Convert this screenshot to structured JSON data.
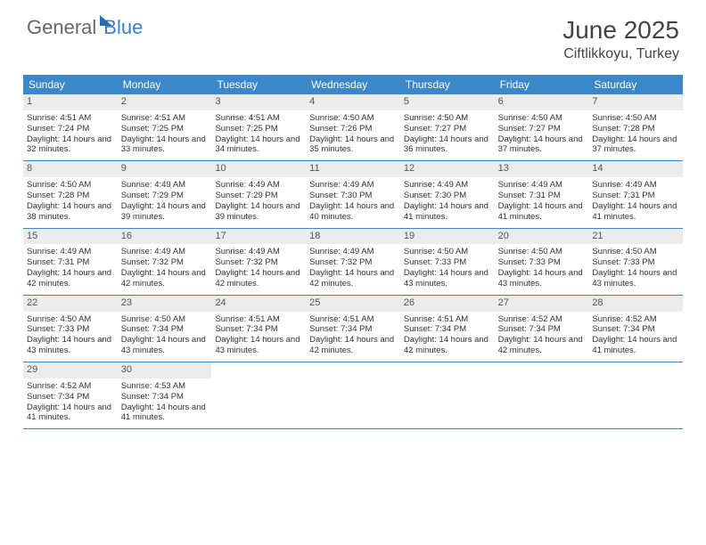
{
  "logo": {
    "part1": "General",
    "part2": "Blue"
  },
  "title": "June 2025",
  "location": "Ciftlikkoyu, Turkey",
  "colors": {
    "header_bg": "#3b87c8",
    "header_text": "#ffffff",
    "daynum_bg": "#ececec",
    "border": "#3b87c8",
    "text": "#333333"
  },
  "day_names": [
    "Sunday",
    "Monday",
    "Tuesday",
    "Wednesday",
    "Thursday",
    "Friday",
    "Saturday"
  ],
  "weeks": [
    [
      {
        "n": "1",
        "sr": "4:51 AM",
        "ss": "7:24 PM",
        "dl": "14 hours and 32 minutes."
      },
      {
        "n": "2",
        "sr": "4:51 AM",
        "ss": "7:25 PM",
        "dl": "14 hours and 33 minutes."
      },
      {
        "n": "3",
        "sr": "4:51 AM",
        "ss": "7:25 PM",
        "dl": "14 hours and 34 minutes."
      },
      {
        "n": "4",
        "sr": "4:50 AM",
        "ss": "7:26 PM",
        "dl": "14 hours and 35 minutes."
      },
      {
        "n": "5",
        "sr": "4:50 AM",
        "ss": "7:27 PM",
        "dl": "14 hours and 36 minutes."
      },
      {
        "n": "6",
        "sr": "4:50 AM",
        "ss": "7:27 PM",
        "dl": "14 hours and 37 minutes."
      },
      {
        "n": "7",
        "sr": "4:50 AM",
        "ss": "7:28 PM",
        "dl": "14 hours and 37 minutes."
      }
    ],
    [
      {
        "n": "8",
        "sr": "4:50 AM",
        "ss": "7:28 PM",
        "dl": "14 hours and 38 minutes."
      },
      {
        "n": "9",
        "sr": "4:49 AM",
        "ss": "7:29 PM",
        "dl": "14 hours and 39 minutes."
      },
      {
        "n": "10",
        "sr": "4:49 AM",
        "ss": "7:29 PM",
        "dl": "14 hours and 39 minutes."
      },
      {
        "n": "11",
        "sr": "4:49 AM",
        "ss": "7:30 PM",
        "dl": "14 hours and 40 minutes."
      },
      {
        "n": "12",
        "sr": "4:49 AM",
        "ss": "7:30 PM",
        "dl": "14 hours and 41 minutes."
      },
      {
        "n": "13",
        "sr": "4:49 AM",
        "ss": "7:31 PM",
        "dl": "14 hours and 41 minutes."
      },
      {
        "n": "14",
        "sr": "4:49 AM",
        "ss": "7:31 PM",
        "dl": "14 hours and 41 minutes."
      }
    ],
    [
      {
        "n": "15",
        "sr": "4:49 AM",
        "ss": "7:31 PM",
        "dl": "14 hours and 42 minutes."
      },
      {
        "n": "16",
        "sr": "4:49 AM",
        "ss": "7:32 PM",
        "dl": "14 hours and 42 minutes."
      },
      {
        "n": "17",
        "sr": "4:49 AM",
        "ss": "7:32 PM",
        "dl": "14 hours and 42 minutes."
      },
      {
        "n": "18",
        "sr": "4:49 AM",
        "ss": "7:32 PM",
        "dl": "14 hours and 42 minutes."
      },
      {
        "n": "19",
        "sr": "4:50 AM",
        "ss": "7:33 PM",
        "dl": "14 hours and 43 minutes."
      },
      {
        "n": "20",
        "sr": "4:50 AM",
        "ss": "7:33 PM",
        "dl": "14 hours and 43 minutes."
      },
      {
        "n": "21",
        "sr": "4:50 AM",
        "ss": "7:33 PM",
        "dl": "14 hours and 43 minutes."
      }
    ],
    [
      {
        "n": "22",
        "sr": "4:50 AM",
        "ss": "7:33 PM",
        "dl": "14 hours and 43 minutes."
      },
      {
        "n": "23",
        "sr": "4:50 AM",
        "ss": "7:34 PM",
        "dl": "14 hours and 43 minutes."
      },
      {
        "n": "24",
        "sr": "4:51 AM",
        "ss": "7:34 PM",
        "dl": "14 hours and 43 minutes."
      },
      {
        "n": "25",
        "sr": "4:51 AM",
        "ss": "7:34 PM",
        "dl": "14 hours and 42 minutes."
      },
      {
        "n": "26",
        "sr": "4:51 AM",
        "ss": "7:34 PM",
        "dl": "14 hours and 42 minutes."
      },
      {
        "n": "27",
        "sr": "4:52 AM",
        "ss": "7:34 PM",
        "dl": "14 hours and 42 minutes."
      },
      {
        "n": "28",
        "sr": "4:52 AM",
        "ss": "7:34 PM",
        "dl": "14 hours and 41 minutes."
      }
    ],
    [
      {
        "n": "29",
        "sr": "4:52 AM",
        "ss": "7:34 PM",
        "dl": "14 hours and 41 minutes."
      },
      {
        "n": "30",
        "sr": "4:53 AM",
        "ss": "7:34 PM",
        "dl": "14 hours and 41 minutes."
      },
      null,
      null,
      null,
      null,
      null
    ]
  ],
  "labels": {
    "sunrise": "Sunrise: ",
    "sunset": "Sunset: ",
    "daylight": "Daylight: "
  }
}
